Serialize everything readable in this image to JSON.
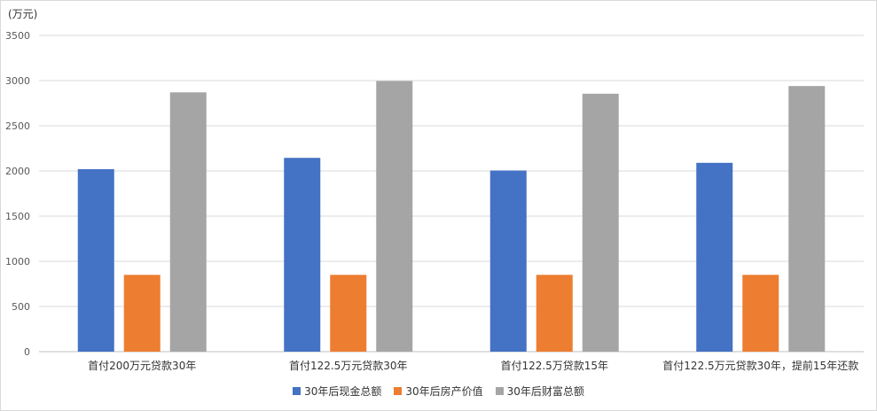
{
  "chart_data": {
    "type": "bar",
    "unit_label": "(万元)",
    "categories": [
      "首付200万元贷款30年",
      "首付122.5万元贷款30年",
      "首付122.5万贷款15年",
      "首付122.5万元贷款30年，提前15年还款"
    ],
    "series": [
      {
        "name": "30年后现金总额",
        "color": "#4472c4",
        "values": [
          2020,
          2145,
          2005,
          2090
        ]
      },
      {
        "name": "30年后房产价值",
        "color": "#ed7d31",
        "values": [
          850,
          850,
          850,
          850
        ]
      },
      {
        "name": "30年后财富总额",
        "color": "#a5a5a5",
        "values": [
          2870,
          2995,
          2855,
          2940
        ]
      }
    ],
    "ylim": [
      0,
      3500
    ],
    "yticks": [
      0,
      500,
      1000,
      1500,
      2000,
      2500,
      3000,
      3500
    ],
    "grid": true,
    "legend_position": "bottom"
  }
}
